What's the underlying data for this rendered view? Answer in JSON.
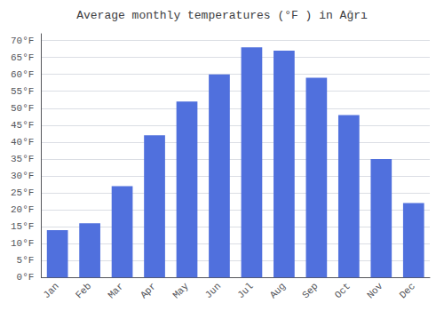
{
  "chart_data": {
    "type": "bar",
    "title": "Average monthly temperatures (°F ) in Ağrı",
    "categories": [
      "Jan",
      "Feb",
      "Mar",
      "Apr",
      "May",
      "Jun",
      "Jul",
      "Aug",
      "Sep",
      "Oct",
      "Nov",
      "Dec"
    ],
    "values": [
      14,
      16,
      27,
      42,
      52,
      60,
      68,
      67,
      59,
      48,
      35,
      22
    ],
    "ylim": [
      0,
      72
    ],
    "yticks": [
      {
        "value": 0,
        "label": "0°F"
      },
      {
        "value": 5,
        "label": "5°F"
      },
      {
        "value": 10,
        "label": "10°F"
      },
      {
        "value": 15,
        "label": "15°F"
      },
      {
        "value": 20,
        "label": "20°F"
      },
      {
        "value": 25,
        "label": "25°F"
      },
      {
        "value": 30,
        "label": "30°F"
      },
      {
        "value": 35,
        "label": "35°F"
      },
      {
        "value": 40,
        "label": "40°F"
      },
      {
        "value": 45,
        "label": "45°F"
      },
      {
        "value": 50,
        "label": "50°F"
      },
      {
        "value": 55,
        "label": "55°F"
      },
      {
        "value": 60,
        "label": "60°F"
      },
      {
        "value": 65,
        "label": "65°F"
      },
      {
        "value": 70,
        "label": "70°F"
      }
    ],
    "grid": true
  }
}
